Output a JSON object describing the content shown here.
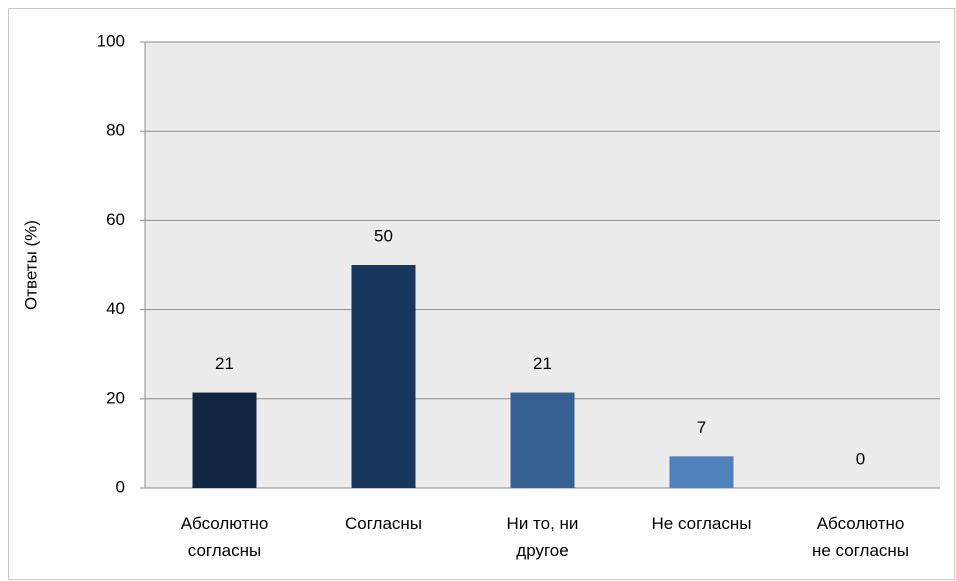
{
  "chart_data": {
    "type": "bar",
    "y_label": "Ответы (%)",
    "categories": [
      "Абсолютно\nсогласны",
      "Согласны",
      "Ни то, ни\nдругое",
      "Не согласны",
      "Абсолютно\nне согласны"
    ],
    "values": [
      21.4,
      50,
      21.4,
      7.1,
      0
    ],
    "value_labels": [
      "21",
      "50",
      "21",
      "7",
      "0"
    ],
    "colors": [
      "#10253f",
      "#17375e",
      "#366092",
      "#4f81bd",
      "#95b3d7"
    ],
    "ylim": [
      0,
      100
    ],
    "yticks": [
      0,
      20,
      40,
      60,
      80,
      100
    ],
    "grid": true
  }
}
